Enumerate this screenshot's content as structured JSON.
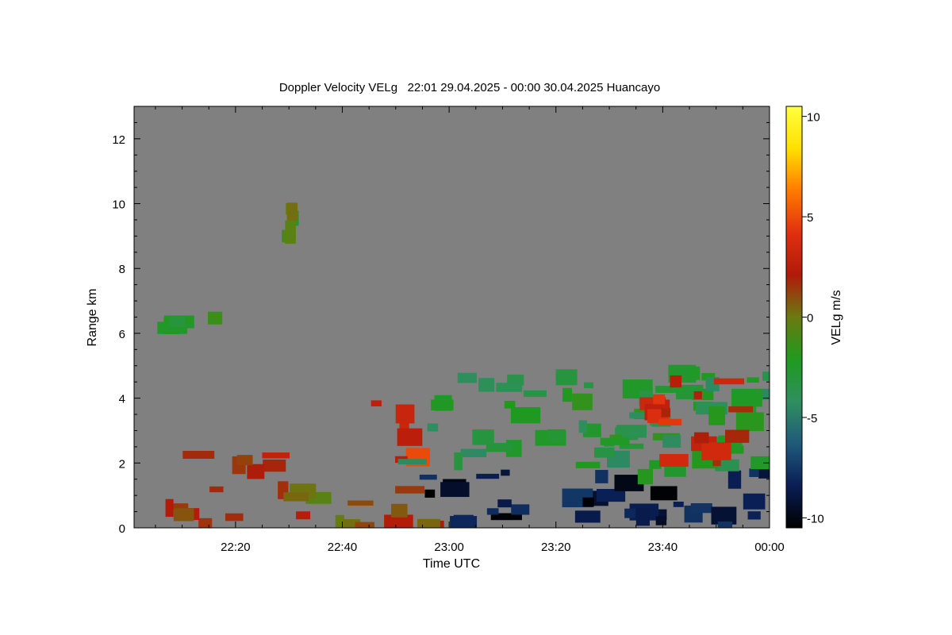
{
  "chart_data": {
    "type": "heatmap",
    "title": "Doppler Velocity VELg   22:01 29.04.2025 - 00:00 30.04.2025 Huancayo",
    "xlabel": "Time UTC",
    "ylabel": "Range km",
    "x_range": [
      "22:01",
      "00:00"
    ],
    "x_ticks": [
      "22:20",
      "22:40",
      "23:00",
      "23:20",
      "23:40",
      "00:00"
    ],
    "y_range": [
      0,
      13
    ],
    "y_ticks": [
      0,
      2,
      4,
      6,
      8,
      10,
      12
    ],
    "colorbar": {
      "label": "VELg m/s",
      "range": [
        -10.5,
        10.5
      ],
      "ticks": [
        10,
        5,
        0,
        -5,
        -10
      ],
      "tick_labels": [
        "10",
        "5",
        "0",
        "-5",
        "-10"
      ],
      "colors": [
        "#000000",
        "#0a1e55",
        "#1f5a7a",
        "#2f8f5f",
        "#1f9a1f",
        "#6a7a10",
        "#b01a0a",
        "#e03010",
        "#ff7a00",
        "#ffe000",
        "#ffff40"
      ]
    },
    "no_data_color": "#808080",
    "features": [
      {
        "desc": "green/brown blob",
        "time_range": [
          "22:29",
          "22:31"
        ],
        "range_km": [
          8.7,
          9.9
        ],
        "velocity": -1
      },
      {
        "desc": "green layer",
        "time_range": [
          "22:03",
          "22:18"
        ],
        "range_km": [
          6.0,
          6.5
        ],
        "velocity": -2
      },
      {
        "desc": "red layer",
        "time_range": [
          "22:10",
          "22:30"
        ],
        "range_km": [
          1.7,
          2.3
        ],
        "velocity": 2
      },
      {
        "desc": "surface echoes",
        "time_range": [
          "22:01",
          "22:57"
        ],
        "range_km": [
          0,
          1.2
        ],
        "velocity": 1
      },
      {
        "desc": "red updraft region",
        "time_range": [
          "22:45",
          "22:55"
        ],
        "range_km": [
          2.0,
          4.0
        ],
        "velocity": 4
      },
      {
        "desc": "precipitation downdraft",
        "time_range": [
          "22:56",
          "00:00"
        ],
        "range_km": [
          0,
          1.8
        ],
        "velocity": -9
      },
      {
        "desc": "mixed green cloud",
        "time_range": [
          "22:53",
          "00:00"
        ],
        "range_km": [
          1.5,
          4.8
        ],
        "velocity": -3
      },
      {
        "desc": "red streaks",
        "time_range": [
          "23:38",
          "00:00"
        ],
        "range_km": [
          2.0,
          4.6
        ],
        "velocity": 3
      }
    ]
  }
}
